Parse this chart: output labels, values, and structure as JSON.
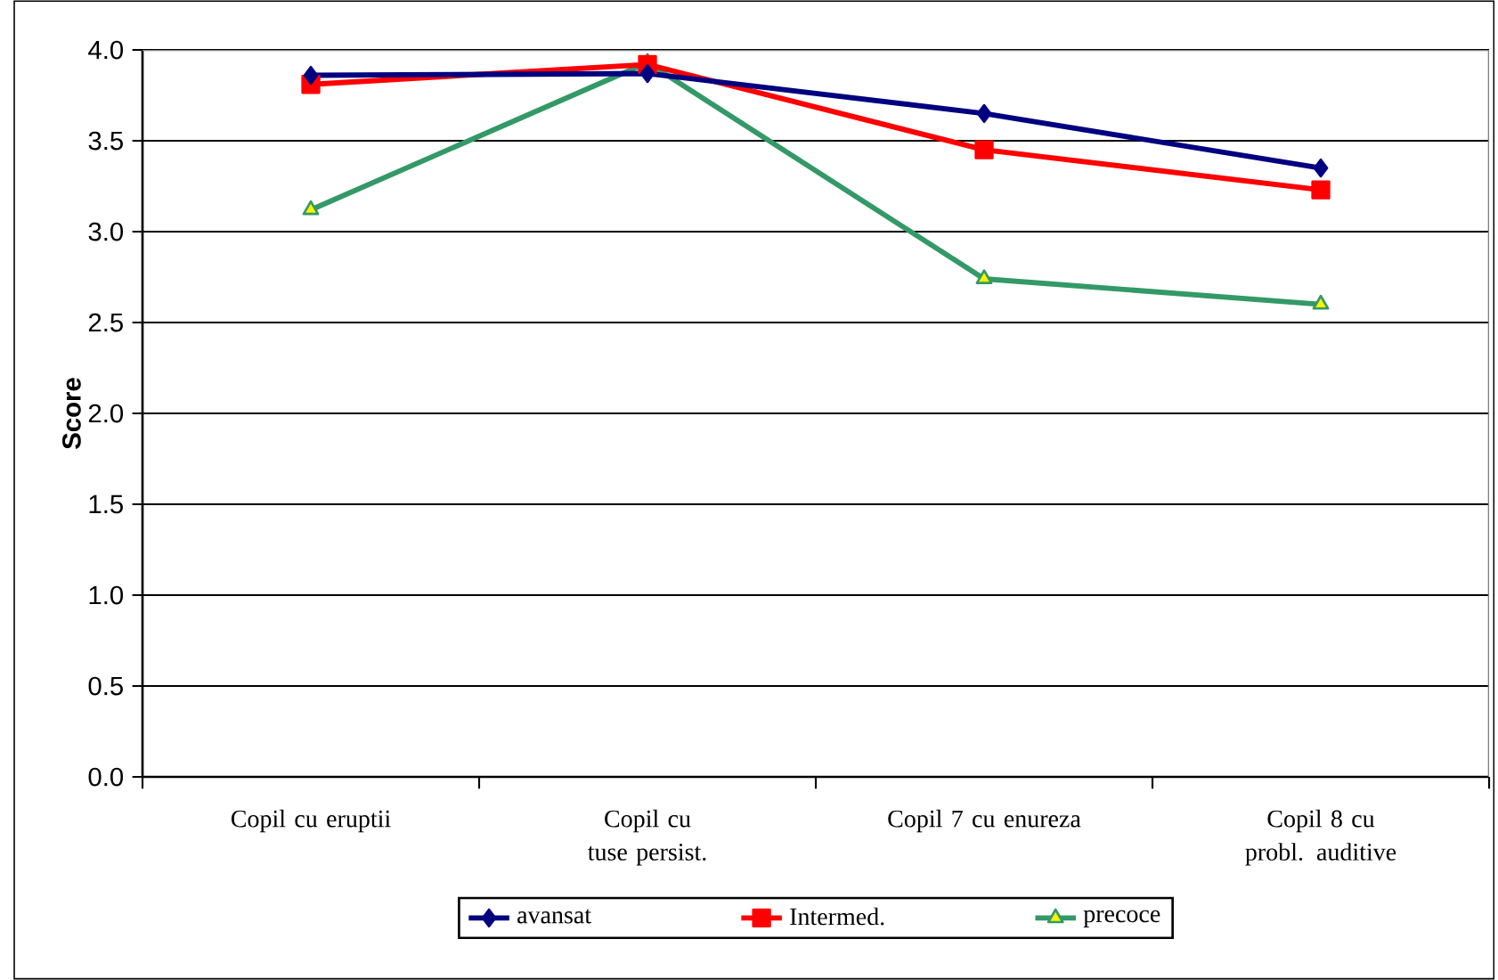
{
  "chart_data": {
    "type": "line",
    "ylabel": "Score",
    "categories": [
      "Copil cu eruptii",
      "Copil cu tuse persist.",
      "Copil 7 cu enureza",
      "Copil 8 cu probl. auditive"
    ],
    "series": [
      {
        "name": "avansat",
        "color": "#000080",
        "marker": "diamond",
        "values": [
          3.86,
          3.87,
          3.65,
          3.35
        ]
      },
      {
        "name": "Intermed.",
        "color": "#ff0000",
        "marker": "square",
        "values": [
          3.81,
          3.92,
          3.45,
          3.23
        ]
      },
      {
        "name": "precoce",
        "color": "#339966",
        "marker": "triangle",
        "values": [
          3.12,
          3.93,
          2.74,
          2.6
        ]
      }
    ],
    "ylim": [
      0,
      4
    ],
    "yticks": [
      {
        "value": 0,
        "label": "0.0"
      },
      {
        "value": 0.5,
        "label": "0.5"
      },
      {
        "value": 1,
        "label": "1.0"
      },
      {
        "value": 1.5,
        "label": "1.5"
      },
      {
        "value": 2,
        "label": "2.0"
      },
      {
        "value": 2.5,
        "label": "2.5"
      },
      {
        "value": 3,
        "label": "3.0"
      },
      {
        "value": 3.5,
        "label": "3.5"
      },
      {
        "value": 4,
        "label": "4.0"
      }
    ],
    "grid": "y",
    "legend": "bottom",
    "line_style": "solid"
  }
}
